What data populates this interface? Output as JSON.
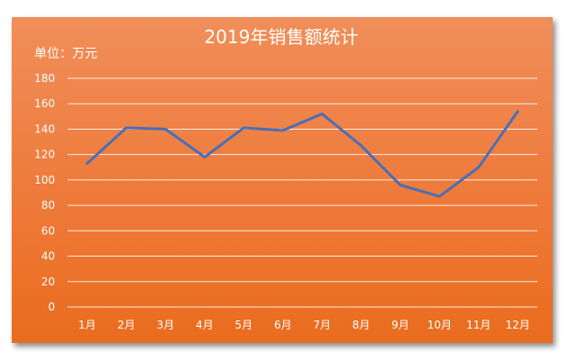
{
  "chart_data": {
    "type": "line",
    "title": "2019年销售额统计",
    "unit_label": "单位：万元",
    "categories": [
      "1月",
      "2月",
      "3月",
      "4月",
      "5月",
      "6月",
      "7月",
      "8月",
      "9月",
      "10月",
      "11月",
      "12月"
    ],
    "series": [
      {
        "values": [
          113,
          141,
          140,
          118,
          141,
          139,
          152,
          127,
          96,
          87,
          110,
          154
        ]
      }
    ],
    "yticks": [
      0,
      20,
      40,
      60,
      80,
      100,
      120,
      140,
      160,
      180
    ],
    "ylim": [
      0,
      180
    ],
    "grid": true,
    "legend": "none",
    "colors": {
      "background": "#ee7a3a",
      "line": "#4a6fb5",
      "text": "#ffffff"
    }
  }
}
